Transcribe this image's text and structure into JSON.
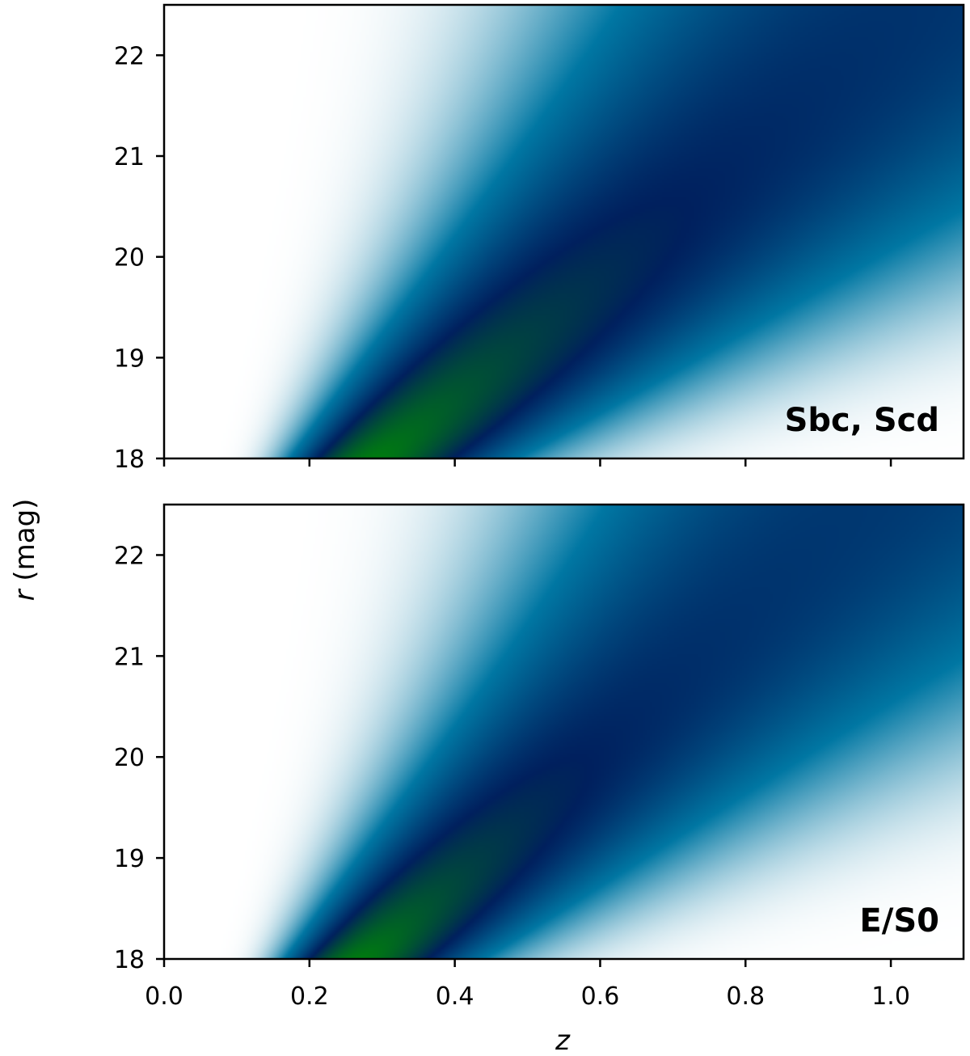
{
  "chart_data": [
    {
      "type": "heatmap",
      "panel_label": "Sbc, Scd",
      "panel_label_position": "bottom-right",
      "xlabel": "z",
      "ylabel": "r (mag)",
      "xlim": [
        0.0,
        1.1
      ],
      "ylim": [
        18,
        22.5
      ],
      "x_ticks": [
        0.0,
        0.2,
        0.4,
        0.6,
        0.8,
        1.0
      ],
      "x_tick_labels": [],
      "y_ticks": [
        18,
        19,
        20,
        21,
        22
      ],
      "y_tick_labels": [
        "18",
        "19",
        "20",
        "21",
        "22"
      ],
      "colormap": [
        "#ffffff",
        "#0077a3",
        "#00205e",
        "#007b10"
      ],
      "density_model": {
        "peak_z_at_r18": 0.29,
        "peak_z_slope_per_mag": 0.16,
        "log_width_at_r18": 0.35,
        "log_width_slope_per_mag": 0.02,
        "brightest_r": 18.0,
        "r_falloff_mag": 1.8
      },
      "grid": false
    },
    {
      "type": "heatmap",
      "panel_label": "E/S0",
      "panel_label_position": "bottom-right",
      "xlabel": "z",
      "ylabel": "r (mag)",
      "xlim": [
        0.0,
        1.1
      ],
      "ylim": [
        18,
        22.5
      ],
      "x_ticks": [
        0.0,
        0.2,
        0.4,
        0.6,
        0.8,
        1.0
      ],
      "x_tick_labels": [
        "0.0",
        "0.2",
        "0.4",
        "0.6",
        "0.8",
        "1.0"
      ],
      "y_ticks": [
        18,
        19,
        20,
        21,
        22
      ],
      "y_tick_labels": [
        "18",
        "19",
        "20",
        "21",
        "22"
      ],
      "colormap": [
        "#ffffff",
        "#0077a3",
        "#00205e",
        "#007b10"
      ],
      "density_model": {
        "peak_z_at_r18": 0.27,
        "peak_z_slope_per_mag": 0.15,
        "log_width_at_r18": 0.33,
        "log_width_slope_per_mag": 0.02,
        "brightest_r": 18.0,
        "r_falloff_mag": 1.4
      },
      "grid": false
    }
  ],
  "shared_ylabel": {
    "italic": "r",
    "rest": " (mag)"
  },
  "shared_xlabel": "z"
}
